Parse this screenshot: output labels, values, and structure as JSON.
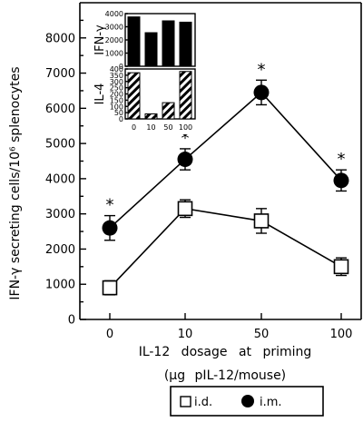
{
  "chart_data": [
    {
      "type": "line",
      "title": "",
      "ylabel": "IFN-γ secreting cells/10⁶ splenocytes",
      "xlabel": "IL-12 dosage at priming",
      "xlabel_line2": "(μg pIL-12/mouse)",
      "categories": [
        "0",
        "10",
        "50",
        "100"
      ],
      "ylim": [
        0,
        9000
      ],
      "yticks": [
        0,
        1000,
        2000,
        3000,
        4000,
        5000,
        6000,
        7000,
        8000
      ],
      "series": [
        {
          "name": "i.d.",
          "marker": "open-square",
          "values": [
            900,
            3150,
            2800,
            1500
          ],
          "errors": [
            200,
            250,
            350,
            250
          ]
        },
        {
          "name": "i.m.",
          "marker": "filled-circle",
          "values": [
            2600,
            4550,
            6450,
            3950
          ],
          "errors": [
            350,
            300,
            350,
            300
          ]
        }
      ],
      "significance": [
        {
          "series": "i.m.",
          "category": "0",
          "label": "*"
        },
        {
          "series": "i.m.",
          "category": "10",
          "label": "*"
        },
        {
          "series": "i.m.",
          "category": "50",
          "label": "*"
        },
        {
          "series": "i.m.",
          "category": "100",
          "label": "*"
        }
      ],
      "legend": {
        "placement": "bottom-center",
        "entries": [
          "i.d.",
          "i.m."
        ]
      }
    },
    {
      "type": "bar",
      "inset": true,
      "panels": [
        {
          "label": "IFN-γ",
          "fill": "solid-black",
          "ylim": [
            0,
            4000
          ],
          "yticks": [
            0,
            1000,
            2000,
            3000,
            4000
          ],
          "categories": [
            "0",
            "10",
            "50",
            "100"
          ],
          "values": [
            3750,
            2550,
            3450,
            3350
          ]
        },
        {
          "label": "IL-4",
          "fill": "hatched",
          "ylim": [
            0,
            400
          ],
          "yticks": [
            0,
            50,
            100,
            150,
            200,
            250,
            300,
            350,
            400
          ],
          "categories": [
            "0",
            "10",
            "50",
            "100"
          ],
          "values": [
            370,
            40,
            130,
            380
          ]
        }
      ]
    }
  ]
}
